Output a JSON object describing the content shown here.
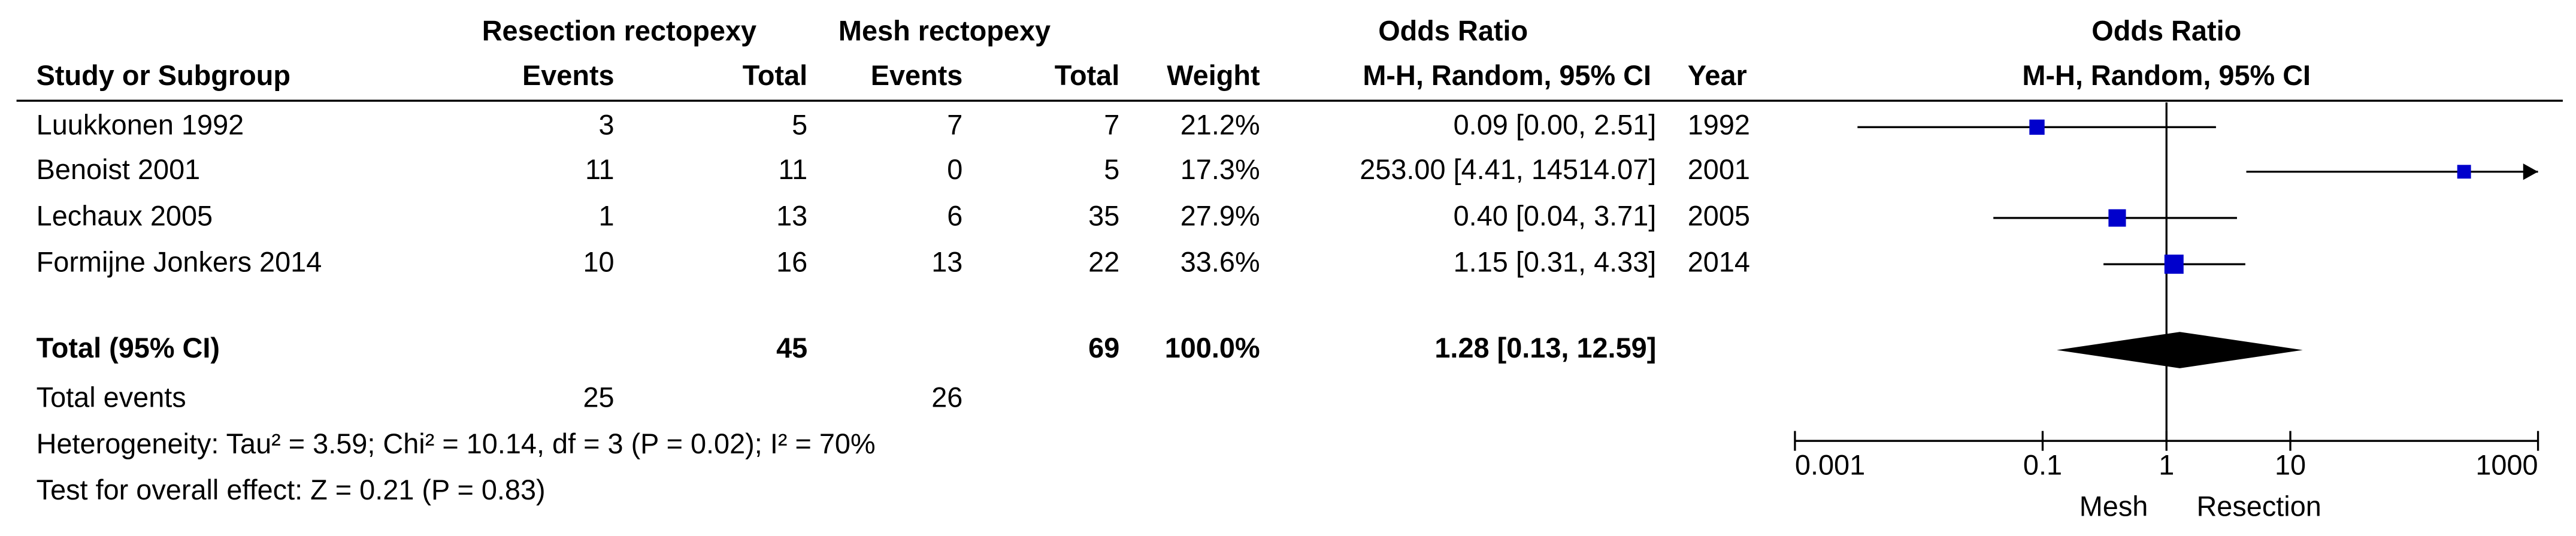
{
  "chart_data": {
    "type": "forest",
    "headers": {
      "group1": "Resection rectopexy",
      "group2": "Mesh rectopexy",
      "or_table": "Odds Ratio",
      "or_plot": "Odds Ratio",
      "study": "Study or Subgroup",
      "events1": "Events",
      "total1": "Total",
      "events2": "Events",
      "total2": "Total",
      "weight": "Weight",
      "method_table": "M-H, Random, 95% CI",
      "year": "Year",
      "method_plot": "M-H, Random, 95% CI"
    },
    "studies": [
      {
        "name": "Luukkonen 1992",
        "events1": 3,
        "total1": 5,
        "events2": 7,
        "total2": 7,
        "weight": 21.2,
        "weight_label": "21.2%",
        "or": 0.09,
        "ci": [
          0.0032,
          2.51
        ],
        "or_label": "0.09 [0.00, 2.51]",
        "year": 1992
      },
      {
        "name": "Benoist 2001",
        "events1": 11,
        "total1": 11,
        "events2": 0,
        "total2": 5,
        "weight": 17.3,
        "weight_label": "17.3%",
        "or": 253.0,
        "ci": [
          4.41,
          14514.07
        ],
        "or_label": "253.00 [4.41, 14514.07]",
        "year": 2001
      },
      {
        "name": "Lechaux 2005",
        "events1": 1,
        "total1": 13,
        "events2": 6,
        "total2": 35,
        "weight": 27.9,
        "weight_label": "27.9%",
        "or": 0.4,
        "ci": [
          0.04,
          3.71
        ],
        "or_label": "0.40 [0.04, 3.71]",
        "year": 2005
      },
      {
        "name": "Formijne Jonkers 2014",
        "events1": 10,
        "total1": 16,
        "events2": 13,
        "total2": 22,
        "weight": 33.6,
        "weight_label": "33.6%",
        "or": 1.15,
        "ci": [
          0.31,
          4.33
        ],
        "or_label": "1.15 [0.31, 4.33]",
        "year": 2014
      }
    ],
    "total": {
      "name": "Total (95% CI)",
      "total1": 45,
      "total2": 69,
      "weight": 100.0,
      "weight_label": "100.0%",
      "or": 1.28,
      "ci": [
        0.13,
        12.59
      ],
      "or_label": "1.28 [0.13, 12.59]"
    },
    "total_events": {
      "label": "Total events",
      "events1": 25,
      "events2": 26
    },
    "heterogeneity": "Heterogeneity: Tau² = 3.59; Chi² = 10.14, df = 3 (P = 0.02); I² = 70%",
    "overall_effect": "Test for overall effect: Z = 0.21 (P = 0.83)",
    "log": true,
    "xlim": [
      0.001,
      1000
    ],
    "xticks": [
      0.001,
      0.1,
      1,
      10,
      1000
    ],
    "favours": [
      "Mesh",
      "Resection"
    ],
    "color": "#0000cc"
  }
}
